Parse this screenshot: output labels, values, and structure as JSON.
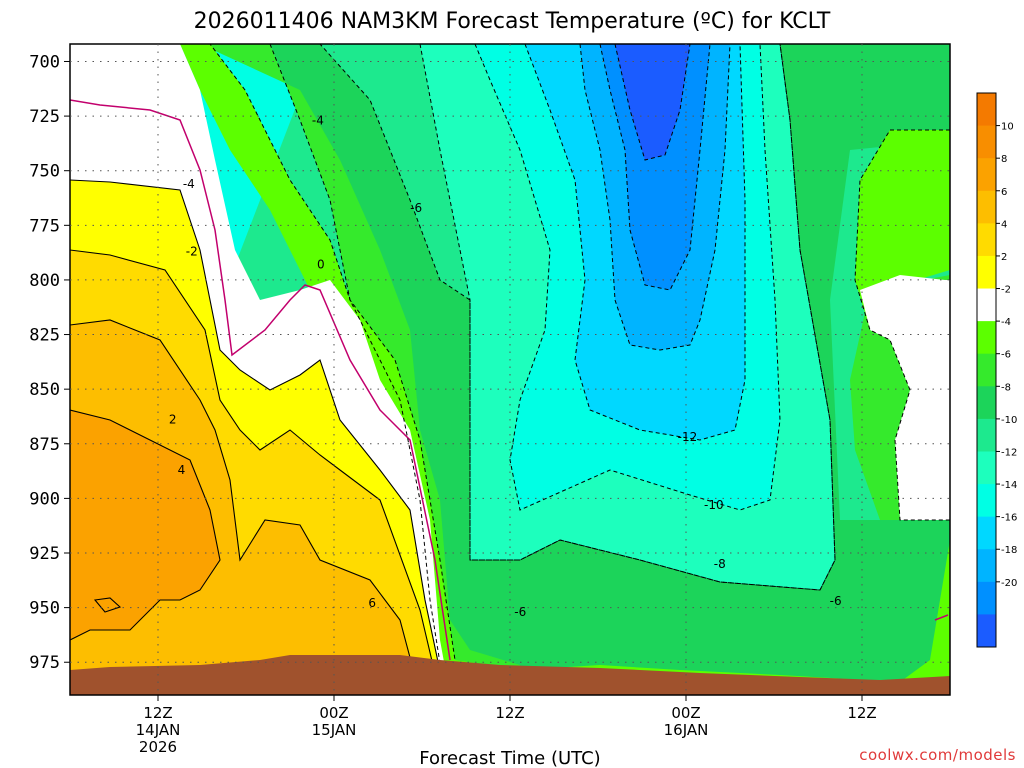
{
  "chart_data": {
    "type": "heatmap",
    "title": "2026011406 NAM3KM Forecast Temperature (ºC) for KCLT",
    "xlabel": "Forecast Time (UTC)",
    "ylabel": "",
    "x_ticks": [
      {
        "hours": 6,
        "lines": [
          "12Z",
          "14JAN",
          "2026"
        ]
      },
      {
        "hours": 18,
        "lines": [
          "00Z",
          "15JAN"
        ]
      },
      {
        "hours": 30,
        "lines": [
          "12Z"
        ]
      },
      {
        "hours": 42,
        "lines": [
          "00Z",
          "16JAN"
        ]
      },
      {
        "hours": 54,
        "lines": [
          "12Z"
        ]
      }
    ],
    "xlim": [
      0,
      60
    ],
    "y_ticks": [
      700,
      725,
      750,
      775,
      800,
      825,
      850,
      875,
      900,
      925,
      950,
      975
    ],
    "ylim": [
      692,
      990
    ],
    "y_reversed": true,
    "grid": true,
    "colorbar": {
      "levels": [
        12,
        10,
        8,
        6,
        4,
        2,
        -2,
        -4,
        -6,
        -8,
        -10,
        -12,
        -14,
        -16,
        -18,
        -20,
        -22
      ],
      "tick_labels": [
        "10",
        "8",
        "6",
        "4",
        "2",
        "-2",
        "-4",
        "-6",
        "-8",
        "-10",
        "-12",
        "-14",
        "-16",
        "-18",
        "-20"
      ],
      "colors": [
        "#F47A00",
        "#F88E00",
        "#FBA200",
        "#FDBE00",
        "#FFDB00",
        "#FFFF00",
        "#FFFFFF",
        "#5CFF00",
        "#35EA2C",
        "#1CD45A",
        "#1DE98E",
        "#1DFFBD",
        "#00FFE4",
        "#00D8FF",
        "#00B4FF",
        "#0090FF",
        "#1B5CFF"
      ]
    },
    "contour_labels": [
      {
        "value": "-4",
        "hours": 8.1,
        "level": 756
      },
      {
        "value": "-2",
        "hours": 8.3,
        "level": 787
      },
      {
        "value": "-4",
        "hours": 16.9,
        "level": 727
      },
      {
        "value": "0",
        "hours": 17.1,
        "level": 793
      },
      {
        "value": "-6",
        "hours": 23.6,
        "level": 767
      },
      {
        "value": "2",
        "hours": 7.0,
        "level": 864
      },
      {
        "value": "4",
        "hours": 7.6,
        "level": 887
      },
      {
        "value": "6",
        "hours": 20.6,
        "level": 948
      },
      {
        "value": "-6",
        "hours": 30.7,
        "level": 952
      },
      {
        "value": "-12",
        "hours": 42.1,
        "level": 872
      },
      {
        "value": "-10",
        "hours": 43.9,
        "level": 903
      },
      {
        "value": "-8",
        "hours": 44.3,
        "level": 930
      },
      {
        "value": "-6",
        "hours": 52.2,
        "level": 947
      }
    ],
    "terrain_color": "#A0522D"
  },
  "credit": "coolwx.com/models"
}
